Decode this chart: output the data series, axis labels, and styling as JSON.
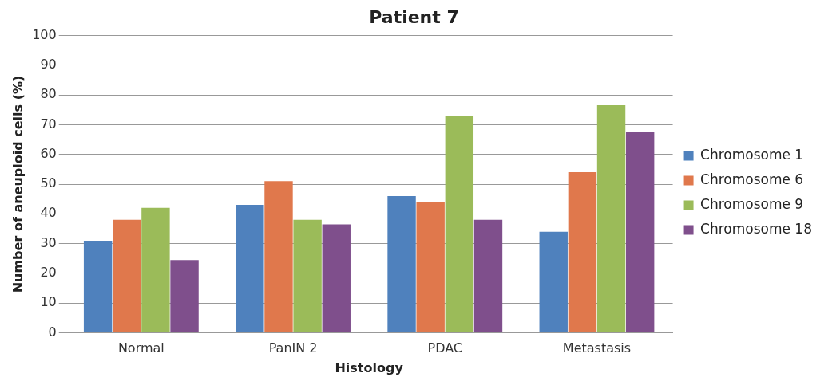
{
  "chart_data": {
    "type": "bar",
    "title": "Patient 7",
    "xlabel": "Histology",
    "ylabel": "Number of aneuploid cells (%)",
    "categories": [
      "Normal",
      "PanIN 2",
      "PDAC",
      "Metastasis"
    ],
    "series": [
      {
        "name": "Chromosome 1",
        "color": "#4f81bd",
        "values": [
          31,
          43,
          46,
          34
        ]
      },
      {
        "name": "Chromosome 6",
        "color": "#e0784c",
        "values": [
          38,
          51,
          44,
          54
        ]
      },
      {
        "name": "Chromosome 9",
        "color": "#9bbb59",
        "values": [
          42,
          38,
          73,
          76.5
        ]
      },
      {
        "name": "Chromosome 18",
        "color": "#7f4f8c",
        "values": [
          24.5,
          36.5,
          38,
          67.5
        ]
      }
    ],
    "ylim": [
      0,
      100
    ],
    "yticks": [
      0,
      10,
      20,
      30,
      40,
      50,
      60,
      70,
      80,
      90,
      100
    ],
    "grid": "y",
    "legend": "right"
  }
}
